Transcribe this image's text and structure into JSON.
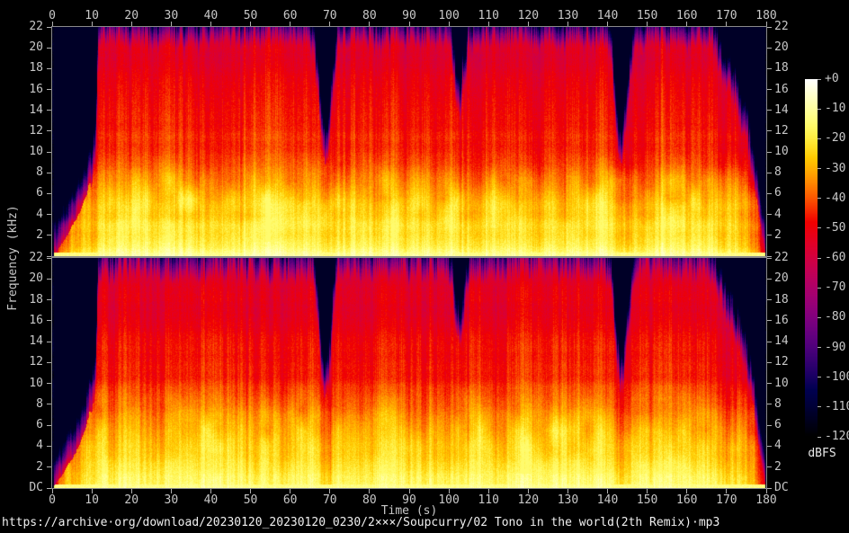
{
  "figure": {
    "background": "#000000",
    "axis_color": "#b0b0b0",
    "label_color": "#c8c8c8",
    "footer_color": "#f0f0f0"
  },
  "time_axis": {
    "label": "Time (s)",
    "range_s": [
      0,
      180
    ],
    "ticks": [
      "0",
      "10",
      "20",
      "30",
      "40",
      "50",
      "60",
      "70",
      "80",
      "90",
      "100",
      "110",
      "120",
      "130",
      "140",
      "150",
      "160",
      "170",
      "180"
    ]
  },
  "freq_axis": {
    "label": "Frequency (kHz)",
    "range_khz": [
      0,
      22
    ],
    "ticks": [
      "22",
      "20",
      "18",
      "16",
      "14",
      "12",
      "10",
      "8",
      "6",
      "4",
      "2",
      "DC"
    ]
  },
  "colorbar": {
    "label": "dBFS",
    "ticks": [
      "+0",
      "-10",
      "-20",
      "-30",
      "-40",
      "-50",
      "-60",
      "-70",
      "-80",
      "-90",
      "-100",
      "-110",
      "-120"
    ],
    "gradient_stops": [
      "#ffffff",
      "#ffff8b",
      "#ffd817",
      "#fe7c00",
      "#f00000",
      "#d20040",
      "#a6006e",
      "#6e0080",
      "#2f006e",
      "#000040",
      "#000000"
    ]
  },
  "footer": "https://archive·org/download/20230120_20230120_0230/2×××/Soupcurry/02 Tono in the world(2th Remix)·mp3",
  "chart_data": {
    "type": "heatmap",
    "subtype": "stereo-spectrogram",
    "channels": 2,
    "x_range_s": [
      0,
      180
    ],
    "y_range_khz": [
      0,
      22
    ],
    "z_range_dbfs": [
      0,
      -120
    ],
    "palette": "sox-spectrogram",
    "music_start_s": 1.5,
    "music_end_s": 179.5,
    "quiet_dips_s": [
      [
        66,
        72
      ],
      [
        101,
        105
      ],
      [
        141,
        147
      ]
    ],
    "fade_in_s": [
      0,
      12
    ],
    "fade_out_s": [
      166,
      179.5
    ],
    "ceiling_breakpoints": [
      [
        0,
        0
      ],
      [
        1,
        0.4
      ],
      [
        2,
        0.9
      ],
      [
        3,
        1.5
      ],
      [
        4,
        2.1
      ],
      [
        5,
        2.8
      ],
      [
        6,
        3.5
      ],
      [
        7,
        4.3
      ],
      [
        8,
        5.2
      ],
      [
        9,
        6.2
      ],
      [
        10,
        7.3
      ],
      [
        11,
        10
      ],
      [
        11.6,
        19
      ],
      [
        12,
        19.8
      ],
      [
        13,
        20
      ],
      [
        65,
        20
      ],
      [
        66,
        19
      ],
      [
        67,
        15
      ],
      [
        68,
        10
      ],
      [
        69,
        8.5
      ],
      [
        70,
        11
      ],
      [
        71,
        16
      ],
      [
        72,
        19.5
      ],
      [
        73,
        20
      ],
      [
        100,
        20
      ],
      [
        101,
        17.5
      ],
      [
        102,
        14
      ],
      [
        103,
        13.5
      ],
      [
        104,
        16.5
      ],
      [
        105,
        19.5
      ],
      [
        106,
        20
      ],
      [
        140,
        20
      ],
      [
        141,
        18.5
      ],
      [
        142,
        13
      ],
      [
        143,
        9.5
      ],
      [
        144,
        9.5
      ],
      [
        145,
        13.5
      ],
      [
        146,
        17.5
      ],
      [
        147,
        19.8
      ],
      [
        148,
        20
      ],
      [
        165,
        20
      ],
      [
        166,
        19.6
      ],
      [
        167,
        18.8
      ],
      [
        168,
        18
      ],
      [
        169,
        17
      ],
      [
        170,
        16
      ],
      [
        171,
        15
      ],
      [
        172,
        14
      ],
      [
        173,
        13
      ],
      [
        174,
        12
      ],
      [
        175,
        10.8
      ],
      [
        176,
        9.2
      ],
      [
        177,
        7
      ],
      [
        178,
        4.5
      ],
      [
        179,
        2
      ],
      [
        179.6,
        0.6
      ],
      [
        180,
        0
      ]
    ],
    "level_breakpoints": [
      [
        0,
        0
      ],
      [
        0.8,
        0.05
      ],
      [
        1.5,
        0.35
      ],
      [
        2,
        0.5
      ],
      [
        3,
        0.6
      ],
      [
        4,
        0.65
      ],
      [
        5,
        0.7
      ],
      [
        6,
        0.74
      ],
      [
        7,
        0.76
      ],
      [
        8,
        0.78
      ],
      [
        9,
        0.8
      ],
      [
        10,
        0.82
      ],
      [
        11,
        0.86
      ],
      [
        12,
        1
      ],
      [
        66,
        1
      ],
      [
        68,
        0.85
      ],
      [
        70,
        0.85
      ],
      [
        72,
        1
      ],
      [
        101,
        1
      ],
      [
        103,
        0.9
      ],
      [
        105,
        1
      ],
      [
        141,
        1
      ],
      [
        143,
        0.85
      ],
      [
        145,
        0.85
      ],
      [
        147,
        1
      ],
      [
        166,
        1
      ],
      [
        168,
        0.95
      ],
      [
        170,
        0.9
      ],
      [
        172,
        0.85
      ],
      [
        174,
        0.8
      ],
      [
        176,
        0.7
      ],
      [
        177,
        0.62
      ],
      [
        178,
        0.5
      ],
      [
        179,
        0.3
      ],
      [
        179.5,
        0.1
      ],
      [
        180,
        0
      ]
    ]
  }
}
